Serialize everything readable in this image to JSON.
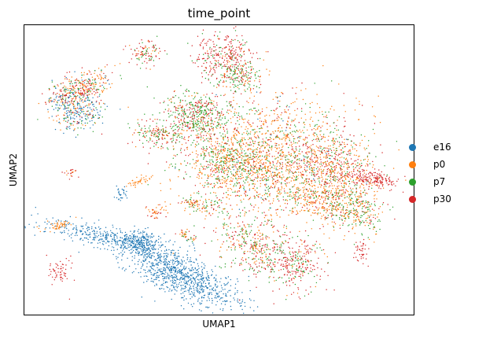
{
  "chart_data": {
    "type": "scatter",
    "title": "time_point",
    "xlabel": "UMAP1",
    "ylabel": "UMAP2",
    "grid": false,
    "ticks": false,
    "legend_position": "right",
    "series": [
      {
        "name": "e16",
        "color": "#1f77b4"
      },
      {
        "name": "p0",
        "color": "#ff7f0e"
      },
      {
        "name": "p7",
        "color": "#2ca02c"
      },
      {
        "name": "p30",
        "color": "#d62728"
      }
    ]
  }
}
